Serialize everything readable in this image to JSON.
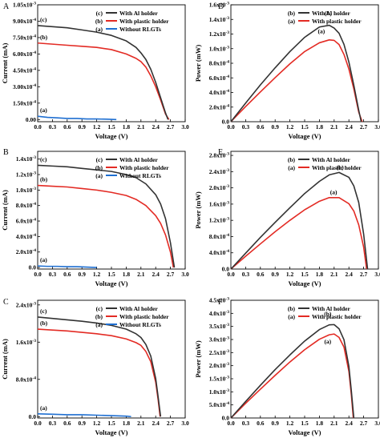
{
  "chart_data": [
    {
      "panel_label": "A",
      "type": "line",
      "xlabel": "Voltage (V)",
      "ylabel": "Current (mA)",
      "xlim": [
        0,
        3.0
      ],
      "ylim": [
        -2e-05,
        0.00105
      ],
      "xticks": [
        0.0,
        0.3,
        0.6,
        0.9,
        1.2,
        1.5,
        1.8,
        2.1,
        2.4,
        2.7,
        3.0
      ],
      "xticklabels": [
        "0.0",
        "0.3",
        "0.6",
        "0.9",
        "1.2",
        "1.5",
        "1.8",
        "2.1",
        "2.4",
        "2.7",
        "3.0"
      ],
      "yticks": [
        0,
        0.00015,
        0.0003,
        0.00045,
        0.0006,
        0.00075,
        0.0009,
        0.00105
      ],
      "yticklabels": [
        {
          "m": "0.00",
          "e": ""
        },
        {
          "m": "1.50x10",
          "e": "-4"
        },
        {
          "m": "3.00x10",
          "e": "-4"
        },
        {
          "m": "4.50x10",
          "e": "-4"
        },
        {
          "m": "6.00x10",
          "e": "-4"
        },
        {
          "m": "7.50x10",
          "e": "-4"
        },
        {
          "m": "9.00x10",
          "e": "-4"
        },
        {
          "m": "1.05x10",
          "e": "-3"
        }
      ],
      "legend": [
        {
          "tag": "(c)",
          "text": "With Al holder",
          "color": "#333333"
        },
        {
          "tag": "(b)",
          "text": "With plastic holder",
          "color": "#e32b24"
        },
        {
          "tag": "(a)",
          "text": "Without RLGTs",
          "color": "#1f6fd1"
        }
      ],
      "series": [
        {
          "label": "(c)",
          "color": "#333333",
          "x": [
            0,
            0.3,
            0.6,
            0.9,
            1.2,
            1.5,
            1.8,
            2.0,
            2.1,
            2.2,
            2.3,
            2.4,
            2.5,
            2.6,
            2.65
          ],
          "y": [
            0.00086,
            0.00085,
            0.00084,
            0.00082,
            0.0008,
            0.00077,
            0.00072,
            0.00066,
            0.00061,
            0.00055,
            0.00046,
            0.00034,
            0.0002,
            6e-05,
            0
          ]
        },
        {
          "label": "(b)",
          "color": "#e32b24",
          "x": [
            0,
            0.3,
            0.6,
            0.9,
            1.2,
            1.5,
            1.8,
            2.0,
            2.1,
            2.2,
            2.3,
            2.4,
            2.5,
            2.6,
            2.67
          ],
          "y": [
            0.0007,
            0.00069,
            0.00068,
            0.00067,
            0.00066,
            0.00064,
            0.0006,
            0.00056,
            0.00053,
            0.00048,
            0.0004,
            0.0003,
            0.00018,
            5e-05,
            0
          ]
        },
        {
          "label": "(a)",
          "color": "#1f6fd1",
          "x": [
            0,
            0.2,
            0.4,
            0.6,
            0.8,
            1.0,
            1.2,
            1.4,
            1.6
          ],
          "y": [
            3e-05,
            2e-05,
            1.5e-05,
            1e-05,
            1e-05,
            5e-06,
            5e-06,
            3e-06,
            0
          ]
        }
      ]
    },
    {
      "panel_label": "D",
      "type": "line",
      "xlabel": "Voltage (V)",
      "ylabel": "Power (mW)",
      "xlim": [
        0,
        3.0
      ],
      "ylim": [
        0,
        0.0016
      ],
      "xticks": [
        0.0,
        0.3,
        0.6,
        0.9,
        1.2,
        1.5,
        1.8,
        2.1,
        2.4,
        2.7,
        3.0
      ],
      "xticklabels": [
        "0.0",
        "0.3",
        "0.6",
        "0.9",
        "1.2",
        "1.5",
        "1.8",
        "2.1",
        "2.4",
        "2.7",
        "3.0"
      ],
      "yticks": [
        0,
        0.0002,
        0.0004,
        0.0006,
        0.0008,
        0.001,
        0.0012,
        0.0014,
        0.0016
      ],
      "yticklabels": [
        {
          "m": "0.0",
          "e": ""
        },
        {
          "m": "2.0x10",
          "e": "-4"
        },
        {
          "m": "4.0x10",
          "e": "-4"
        },
        {
          "m": "6.0x10",
          "e": "-4"
        },
        {
          "m": "8.0x10",
          "e": "-4"
        },
        {
          "m": "1.0x10",
          "e": "-3"
        },
        {
          "m": "1.2x10",
          "e": "-3"
        },
        {
          "m": "1.4x10",
          "e": "-3"
        },
        {
          "m": "1.6x10",
          "e": "-3"
        }
      ],
      "legend": [
        {
          "tag": "(b)",
          "text": "With Al holder",
          "color": "#333333"
        },
        {
          "tag": "(a)",
          "text": "With plastic holder",
          "color": "#e32b24"
        }
      ],
      "series": [
        {
          "label": "(b)",
          "color": "#333333",
          "x": [
            0,
            0.3,
            0.6,
            0.9,
            1.2,
            1.5,
            1.8,
            2.0,
            2.1,
            2.2,
            2.3,
            2.4,
            2.5,
            2.6,
            2.65
          ],
          "y": [
            0,
            0.000255,
            0.000504,
            0.000738,
            0.00096,
            0.001155,
            0.001296,
            0.00132,
            0.001281,
            0.00121,
            0.001058,
            0.000816,
            0.0005,
            0.000156,
            0
          ]
        },
        {
          "label": "(a)",
          "color": "#e32b24",
          "x": [
            0,
            0.3,
            0.6,
            0.9,
            1.2,
            1.5,
            1.8,
            2.0,
            2.1,
            2.2,
            2.3,
            2.4,
            2.5,
            2.6,
            2.67
          ],
          "y": [
            0,
            0.000207,
            0.000408,
            0.000603,
            0.000792,
            0.00096,
            0.00108,
            0.00112,
            0.001113,
            0.001056,
            0.00092,
            0.00072,
            0.00045,
            0.00013,
            0
          ]
        }
      ],
      "curve_labels": [
        {
          "text": "(b)",
          "x": 1.98,
          "y": 0.00146
        },
        {
          "text": "(a)",
          "x": 1.84,
          "y": 0.00121
        }
      ]
    },
    {
      "panel_label": "B",
      "type": "line",
      "xlabel": "Voltage (V)",
      "ylabel": "Current (mA)",
      "xlim": [
        0,
        3.0
      ],
      "ylim": [
        -2e-05,
        0.0015
      ],
      "xticks": [
        0.0,
        0.3,
        0.6,
        0.9,
        1.2,
        1.5,
        1.8,
        2.1,
        2.4,
        2.7,
        3.0
      ],
      "xticklabels": [
        "0.0",
        "0.3",
        "0.6",
        "0.9",
        "1.2",
        "1.5",
        "1.8",
        "2.1",
        "2.4",
        "2.7",
        "3.0"
      ],
      "yticks": [
        0,
        0.0002,
        0.0004,
        0.0006,
        0.0008,
        0.001,
        0.0012,
        0.0014
      ],
      "yticklabels": [
        {
          "m": "0.0",
          "e": ""
        },
        {
          "m": "2.0x10",
          "e": "-4"
        },
        {
          "m": "4.0x10",
          "e": "-4"
        },
        {
          "m": "6.0x10",
          "e": "-4"
        },
        {
          "m": "8.0x10",
          "e": "-4"
        },
        {
          "m": "1.0x10",
          "e": "-3"
        },
        {
          "m": "1.2x10",
          "e": "-3"
        },
        {
          "m": "1.4x10",
          "e": "-3"
        }
      ],
      "legend": [
        {
          "tag": "(c)",
          "text": "With Al holder",
          "color": "#333333"
        },
        {
          "tag": "(b)",
          "text": "With plastic holder",
          "color": "#e32b24"
        },
        {
          "tag": "(a)",
          "text": "Without RLGTs",
          "color": "#1f6fd1"
        }
      ],
      "series": [
        {
          "label": "(c)",
          "color": "#333333",
          "x": [
            0,
            0.3,
            0.6,
            0.9,
            1.2,
            1.5,
            1.8,
            2.0,
            2.2,
            2.4,
            2.5,
            2.6,
            2.7,
            2.78
          ],
          "y": [
            0.00132,
            0.00131,
            0.0013,
            0.00128,
            0.00126,
            0.00124,
            0.0012,
            0.00116,
            0.00108,
            0.00094,
            0.00082,
            0.00063,
            0.00032,
            0
          ]
        },
        {
          "label": "(b)",
          "color": "#e32b24",
          "x": [
            0,
            0.3,
            0.6,
            0.9,
            1.2,
            1.5,
            1.8,
            2.0,
            2.2,
            2.4,
            2.5,
            2.6,
            2.7,
            2.76
          ],
          "y": [
            0.00106,
            0.00105,
            0.00104,
            0.00102,
            0.001,
            0.00097,
            0.00093,
            0.00088,
            0.0008,
            0.00067,
            0.00057,
            0.00042,
            0.0002,
            0
          ]
        },
        {
          "label": "(a)",
          "color": "#1f6fd1",
          "x": [
            0,
            0.2,
            0.4,
            0.6,
            0.8,
            1.0,
            1.2
          ],
          "y": [
            2e-05,
            1.5e-05,
            1.5e-05,
            1e-05,
            1e-05,
            5e-06,
            0
          ]
        }
      ]
    },
    {
      "panel_label": "E",
      "type": "line",
      "xlabel": "Voltage (V)",
      "ylabel": "Power (mW)",
      "xlim": [
        0,
        3.0
      ],
      "ylim": [
        0,
        0.0029
      ],
      "xticks": [
        0.0,
        0.3,
        0.6,
        0.9,
        1.2,
        1.5,
        1.8,
        2.1,
        2.4,
        2.7,
        3.0
      ],
      "xticklabels": [
        "0.0",
        "0.3",
        "0.6",
        "0.9",
        "1.2",
        "1.5",
        "1.8",
        "2.1",
        "2.4",
        "2.7",
        "3.0"
      ],
      "yticks": [
        0,
        0.0004,
        0.0008,
        0.0012,
        0.0016,
        0.002,
        0.0024,
        0.0028
      ],
      "yticklabels": [
        {
          "m": "0.0",
          "e": ""
        },
        {
          "m": "4.0x10",
          "e": "-4"
        },
        {
          "m": "8.0x10",
          "e": "-4"
        },
        {
          "m": "1.2x10",
          "e": "-3"
        },
        {
          "m": "1.6x10",
          "e": "-3"
        },
        {
          "m": "2.0x10",
          "e": "-3"
        },
        {
          "m": "2.4x10",
          "e": "-3"
        },
        {
          "m": "2.8x10",
          "e": "-3"
        }
      ],
      "legend": [
        {
          "tag": "(b)",
          "text": "With Al holder",
          "color": "#333333"
        },
        {
          "tag": "(a)",
          "text": "With plastic holder",
          "color": "#e32b24"
        }
      ],
      "series": [
        {
          "label": "(b)",
          "color": "#333333",
          "x": [
            0,
            0.3,
            0.6,
            0.9,
            1.2,
            1.5,
            1.8,
            2.0,
            2.2,
            2.4,
            2.5,
            2.6,
            2.7,
            2.78
          ],
          "y": [
            0,
            0.00039,
            0.00078,
            0.00115,
            0.00151,
            0.00186,
            0.00216,
            0.00232,
            0.00238,
            0.00226,
            0.00205,
            0.00164,
            0.00086,
            0
          ]
        },
        {
          "label": "(a)",
          "color": "#e32b24",
          "x": [
            0,
            0.3,
            0.6,
            0.9,
            1.2,
            1.5,
            1.8,
            2.0,
            2.2,
            2.4,
            2.5,
            2.6,
            2.7,
            2.76
          ],
          "y": [
            0,
            0.000315,
            0.00062,
            0.00092,
            0.0012,
            0.00146,
            0.00167,
            0.00176,
            0.00176,
            0.00161,
            0.00143,
            0.00109,
            0.00054,
            0
          ]
        }
      ],
      "curve_labels": [
        {
          "text": "(b)",
          "x": 2.22,
          "y": 0.00246
        },
        {
          "text": "(a)",
          "x": 2.09,
          "y": 0.00184
        }
      ]
    },
    {
      "panel_label": "C",
      "type": "line",
      "xlabel": "Voltage (V)",
      "ylabel": "Current (mA)",
      "xlim": [
        0,
        3.0
      ],
      "ylim": [
        -3e-05,
        0.0025
      ],
      "xticks": [
        0.0,
        0.3,
        0.6,
        0.9,
        1.2,
        1.5,
        1.8,
        2.1,
        2.4,
        2.7,
        3.0
      ],
      "xticklabels": [
        "0.0",
        "0.3",
        "0.6",
        "0.9",
        "1.2",
        "1.5",
        "1.8",
        "2.1",
        "2.4",
        "2.7",
        "3.0"
      ],
      "yticks": [
        0,
        0.0008,
        0.0016,
        0.0024
      ],
      "yticklabels": [
        {
          "m": "0.0",
          "e": ""
        },
        {
          "m": "8.0x10",
          "e": "-4"
        },
        {
          "m": "1.6x10",
          "e": "-3"
        },
        {
          "m": "2.4x10",
          "e": "-3"
        }
      ],
      "legend": [
        {
          "tag": "(c)",
          "text": "With Al holder",
          "color": "#333333"
        },
        {
          "tag": "(b)",
          "text": "With plastic holder",
          "color": "#e32b24"
        },
        {
          "tag": "(a)",
          "text": "Without RLGTs",
          "color": "#1f6fd1"
        }
      ],
      "series": [
        {
          "label": "(c)",
          "color": "#333333",
          "x": [
            0,
            0.3,
            0.6,
            0.9,
            1.2,
            1.5,
            1.8,
            2.0,
            2.1,
            2.2,
            2.3,
            2.4,
            2.45,
            2.5
          ],
          "y": [
            0.00214,
            0.00211,
            0.00208,
            0.00205,
            0.00201,
            0.00196,
            0.00188,
            0.00178,
            0.0017,
            0.00155,
            0.0013,
            0.00082,
            0.00042,
            0
          ]
        },
        {
          "label": "(b)",
          "color": "#e32b24",
          "x": [
            0,
            0.3,
            0.6,
            0.9,
            1.2,
            1.5,
            1.8,
            2.0,
            2.1,
            2.2,
            2.3,
            2.4,
            2.45,
            2.49
          ],
          "y": [
            0.00188,
            0.00186,
            0.00184,
            0.00181,
            0.00178,
            0.00174,
            0.00167,
            0.00159,
            0.00153,
            0.0014,
            0.00118,
            0.00074,
            0.00036,
            0
          ]
        },
        {
          "label": "(a)",
          "color": "#1f6fd1",
          "x": [
            0,
            0.3,
            0.6,
            0.9,
            1.2,
            1.5,
            1.8,
            1.9
          ],
          "y": [
            6e-05,
            5e-05,
            4e-05,
            4e-05,
            3e-05,
            2e-05,
            1e-05,
            0
          ]
        }
      ]
    },
    {
      "panel_label": "F",
      "type": "line",
      "xlabel": "Voltage (V)",
      "ylabel": "Power (mW)",
      "xlim": [
        0,
        3.0
      ],
      "ylim": [
        0,
        0.0045
      ],
      "xticks": [
        0.0,
        0.3,
        0.6,
        0.9,
        1.2,
        1.5,
        1.8,
        2.1,
        2.4,
        2.7,
        3.0
      ],
      "xticklabels": [
        "0.0",
        "0.3",
        "0.6",
        "0.9",
        "1.2",
        "1.5",
        "1.8",
        "2.1",
        "2.4",
        "2.7",
        "3.0"
      ],
      "yticks": [
        0,
        0.0005,
        0.001,
        0.0015,
        0.002,
        0.0025,
        0.003,
        0.0035,
        0.004,
        0.0045
      ],
      "yticklabels": [
        {
          "m": "0.0",
          "e": ""
        },
        {
          "m": "5.0x10",
          "e": "-4"
        },
        {
          "m": "1.0x10",
          "e": "-3"
        },
        {
          "m": "1.5x10",
          "e": "-3"
        },
        {
          "m": "2.0x10",
          "e": "-3"
        },
        {
          "m": "2.5x10",
          "e": "-3"
        },
        {
          "m": "3.0x10",
          "e": "-3"
        },
        {
          "m": "3.5x10",
          "e": "-3"
        },
        {
          "m": "4.0x10",
          "e": "-3"
        },
        {
          "m": "4.5x10",
          "e": "-3"
        }
      ],
      "legend": [
        {
          "tag": "(b)",
          "text": "With Al holder",
          "color": "#333333"
        },
        {
          "tag": "(a)",
          "text": "With plastic holder",
          "color": "#e32b24"
        }
      ],
      "series": [
        {
          "label": "(b)",
          "color": "#333333",
          "x": [
            0,
            0.3,
            0.6,
            0.9,
            1.2,
            1.5,
            1.8,
            2.0,
            2.1,
            2.2,
            2.3,
            2.4,
            2.45,
            2.5
          ],
          "y": [
            0,
            0.00063,
            0.00125,
            0.00185,
            0.00241,
            0.00294,
            0.00338,
            0.00356,
            0.00357,
            0.00341,
            0.00299,
            0.00197,
            0.00103,
            0
          ]
        },
        {
          "label": "(a)",
          "color": "#e32b24",
          "x": [
            0,
            0.3,
            0.6,
            0.9,
            1.2,
            1.5,
            1.8,
            2.0,
            2.1,
            2.2,
            2.3,
            2.4,
            2.45,
            2.49
          ],
          "y": [
            0,
            0.00056,
            0.0011,
            0.00163,
            0.00214,
            0.00261,
            0.00301,
            0.00318,
            0.00321,
            0.00308,
            0.00271,
            0.00178,
            0.00088,
            0
          ]
        }
      ],
      "curve_labels": [
        {
          "text": "(b)",
          "x": 1.97,
          "y": 0.0039
        },
        {
          "text": "(a)",
          "x": 1.97,
          "y": 0.00285
        }
      ]
    }
  ]
}
